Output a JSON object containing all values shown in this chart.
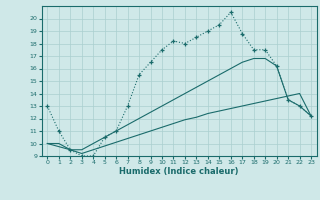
{
  "xlabel": "Humidex (Indice chaleur)",
  "bg_color": "#cfe8e8",
  "grid_color": "#aacfcf",
  "line_color": "#1a6b6b",
  "xlim": [
    -0.5,
    23.5
  ],
  "ylim": [
    9,
    21
  ],
  "xtick_labels": [
    "0",
    "1",
    "2",
    "3",
    "4",
    "5",
    "6",
    "7",
    "8",
    "9",
    "10",
    "11",
    "12",
    "13",
    "14",
    "15",
    "16",
    "17",
    "18",
    "19",
    "20",
    "21",
    "22",
    "23"
  ],
  "xtick_vals": [
    0,
    1,
    2,
    3,
    4,
    5,
    6,
    7,
    8,
    9,
    10,
    11,
    12,
    13,
    14,
    15,
    16,
    17,
    18,
    19,
    20,
    21,
    22,
    23
  ],
  "ytick_vals": [
    9,
    10,
    11,
    12,
    13,
    14,
    15,
    16,
    17,
    18,
    19,
    20
  ],
  "line1_x": [
    0,
    1,
    2,
    3,
    4,
    5,
    6,
    7,
    8,
    9,
    10,
    11,
    12,
    13,
    14,
    15,
    16,
    17,
    18,
    19,
    20,
    21,
    22,
    23
  ],
  "line1_y": [
    13,
    11,
    9.5,
    9,
    9,
    10.5,
    11,
    13,
    15.5,
    16.5,
    17.5,
    18.2,
    18,
    18.5,
    19,
    19.5,
    20.5,
    18.8,
    17.5,
    17.5,
    16.2,
    13.5,
    13,
    12.2
  ],
  "line2_x": [
    0,
    2,
    3,
    4,
    5,
    6,
    7,
    8,
    9,
    10,
    11,
    12,
    13,
    14,
    15,
    16,
    17,
    18,
    19,
    20,
    21,
    22,
    23
  ],
  "line2_y": [
    10,
    9.5,
    9.5,
    10,
    10.5,
    11,
    11.5,
    12,
    12.5,
    13,
    13.5,
    14,
    14.5,
    15,
    15.5,
    16,
    16.5,
    16.8,
    16.8,
    16.2,
    13.5,
    13,
    12.2
  ],
  "line3_x": [
    0,
    1,
    2,
    3,
    4,
    5,
    6,
    7,
    8,
    9,
    10,
    11,
    12,
    13,
    14,
    15,
    16,
    17,
    18,
    19,
    20,
    21,
    22,
    23
  ],
  "line3_y": [
    10,
    10,
    9.5,
    9.2,
    9.5,
    9.8,
    10.1,
    10.4,
    10.7,
    11.0,
    11.3,
    11.6,
    11.9,
    12.1,
    12.4,
    12.6,
    12.8,
    13.0,
    13.2,
    13.4,
    13.6,
    13.8,
    14.0,
    12.2
  ]
}
